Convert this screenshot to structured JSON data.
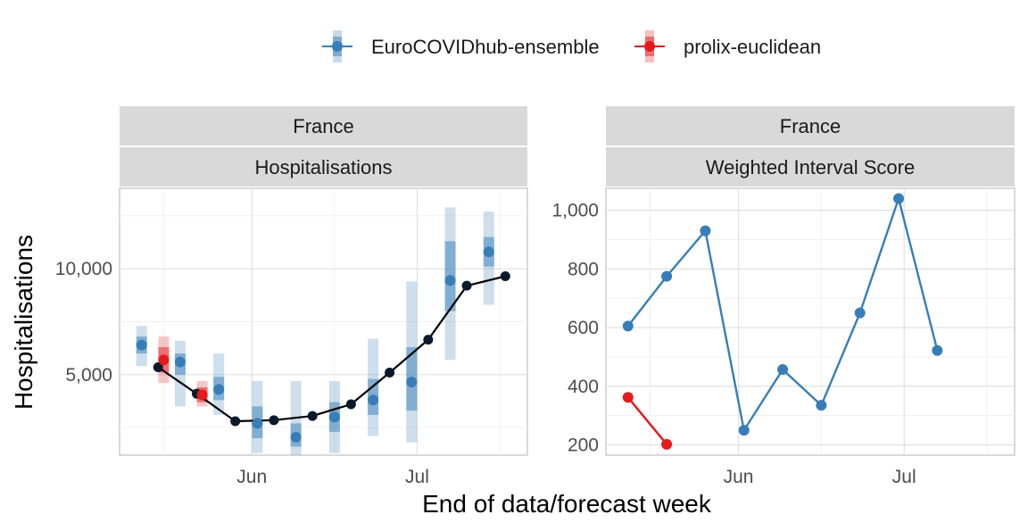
{
  "chart_data": {
    "type": "line",
    "xlabel": "End of data/forecast week",
    "legend": {
      "position": "top",
      "entries": [
        {
          "name": "EuroCOVIDhub-ensemble",
          "color": "#377eb8"
        },
        {
          "name": "prolix-euclidean",
          "color": "#e41a1c"
        }
      ]
    },
    "x_ticks": [
      "Jun",
      "Jul"
    ],
    "panels": [
      {
        "id": "hosp",
        "strip_top": "France",
        "strip_bottom": "Hospitalisations",
        "ylabel": "Hospitalisations",
        "x_range": [
          "2021-05-08",
          "2021-07-21"
        ],
        "ylim": [
          1200,
          13800
        ],
        "y_ticks": [
          5000,
          10000
        ],
        "y_tick_labels": [
          "5,000",
          "10,000"
        ],
        "grid": true,
        "observed": {
          "x": [
            "2021-05-15",
            "2021-05-22",
            "2021-05-29",
            "2021-06-05",
            "2021-06-12",
            "2021-06-19",
            "2021-06-26",
            "2021-07-03",
            "2021-07-10",
            "2021-07-17"
          ],
          "y": [
            5350,
            4100,
            2800,
            2850,
            3050,
            3600,
            5100,
            6650,
            9200,
            9650
          ]
        },
        "forecasts": [
          {
            "model": "EuroCOVIDhub-ensemble",
            "points": [
              {
                "x": "2021-05-12",
                "median": 6400,
                "lo50": 6000,
                "hi50": 6800,
                "lo90": 5400,
                "hi90": 7300
              },
              {
                "x": "2021-05-19",
                "median": 5600,
                "lo50": 5000,
                "hi50": 6000,
                "lo90": 3500,
                "hi90": 6600
              },
              {
                "x": "2021-05-26",
                "median": 4300,
                "lo50": 3800,
                "hi50": 4900,
                "lo90": 3100,
                "hi90": 6000
              },
              {
                "x": "2021-06-02",
                "median": 2700,
                "lo50": 2000,
                "hi50": 3500,
                "lo90": 1300,
                "hi90": 4700
              },
              {
                "x": "2021-06-09",
                "median": 2050,
                "lo50": 1600,
                "hi50": 2700,
                "lo90": 1200,
                "hi90": 4700
              },
              {
                "x": "2021-06-16",
                "median": 3000,
                "lo50": 2300,
                "hi50": 3700,
                "lo90": 1300,
                "hi90": 4700
              },
              {
                "x": "2021-06-23",
                "median": 3800,
                "lo50": 3100,
                "hi50": 4800,
                "lo90": 2100,
                "hi90": 6700
              },
              {
                "x": "2021-06-30",
                "median": 4650,
                "lo50": 3300,
                "hi50": 6300,
                "lo90": 1800,
                "hi90": 9400
              },
              {
                "x": "2021-07-07",
                "median": 9450,
                "lo50": 8000,
                "hi50": 11300,
                "lo90": 5700,
                "hi90": 12900
              },
              {
                "x": "2021-07-14",
                "median": 10800,
                "lo50": 10100,
                "hi50": 11500,
                "lo90": 8300,
                "hi90": 12700
              }
            ]
          },
          {
            "model": "prolix-euclidean",
            "points": [
              {
                "x": "2021-05-16",
                "median": 5700,
                "lo50": 5100,
                "hi50": 6300,
                "lo90": 4600,
                "hi90": 6800
              },
              {
                "x": "2021-05-23",
                "median": 4050,
                "lo50": 3700,
                "hi50": 4400,
                "lo90": 3500,
                "hi90": 4700
              }
            ]
          }
        ]
      },
      {
        "id": "wis",
        "strip_top": "France",
        "strip_bottom": "Weighted Interval Score",
        "x_range": [
          "2021-05-08",
          "2021-07-21"
        ],
        "ylim": [
          165,
          1075
        ],
        "y_ticks": [
          200,
          400,
          600,
          800,
          1000
        ],
        "y_tick_labels": [
          "200",
          "400",
          "600",
          "800",
          "1,000"
        ],
        "grid": true,
        "series": [
          {
            "name": "EuroCOVIDhub-ensemble",
            "x": [
              "2021-05-12",
              "2021-05-19",
              "2021-05-26",
              "2021-06-02",
              "2021-06-09",
              "2021-06-16",
              "2021-06-23",
              "2021-06-30",
              "2021-07-07"
            ],
            "values": [
              605,
              775,
              930,
              250,
              457,
              335,
              650,
              1040,
              522
            ]
          },
          {
            "name": "prolix-euclidean",
            "x": [
              "2021-05-12",
              "2021-05-19"
            ],
            "values": [
              362,
              202
            ]
          }
        ]
      }
    ]
  }
}
